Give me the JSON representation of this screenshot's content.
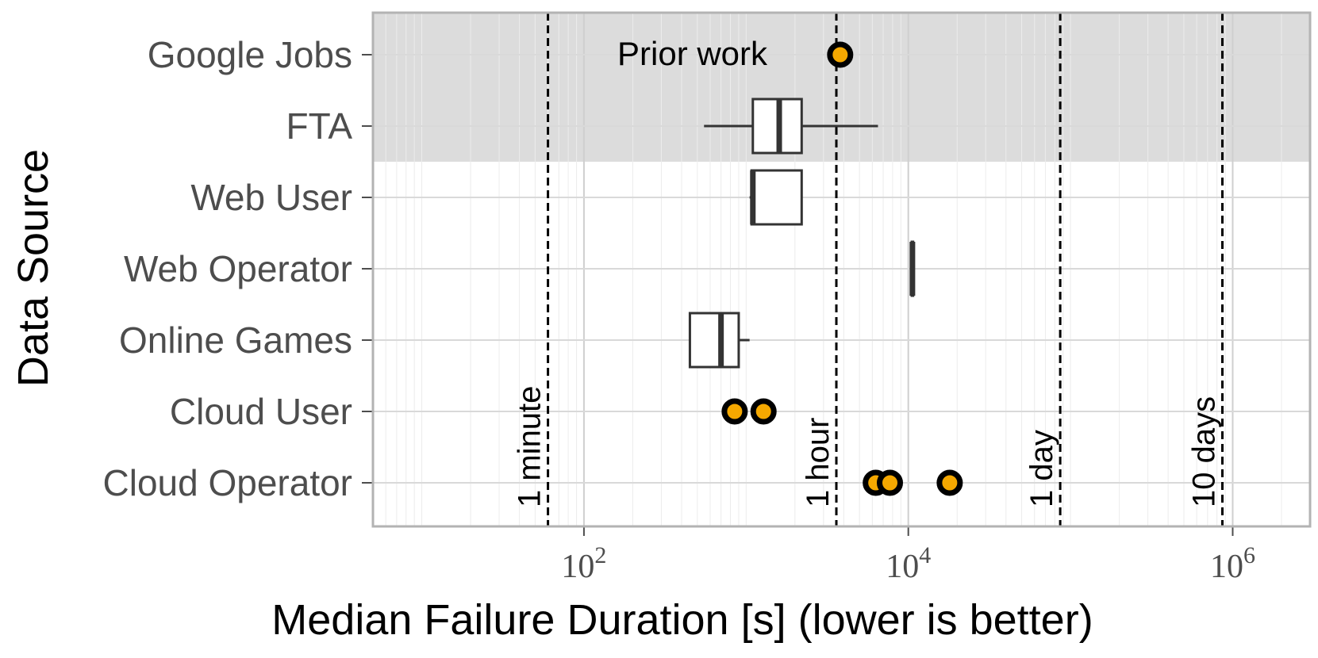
{
  "chart_data": {
    "type": "boxplot",
    "title": "",
    "xlabel": "Median Failure Duration [s] (lower is better)",
    "ylabel": "Data Source",
    "x_scale": "log",
    "xlim": [
      5,
      3000000
    ],
    "x_ticks": [
      {
        "value": 100,
        "base": "10",
        "exp": "2"
      },
      {
        "value": 10000,
        "base": "10",
        "exp": "4"
      },
      {
        "value": 1000000,
        "base": "10",
        "exp": "6"
      }
    ],
    "categories": [
      "Google Jobs",
      "FTA",
      "Web User",
      "Web Operator",
      "Online Games",
      "Cloud User",
      "Cloud Operator"
    ],
    "shaded_region": {
      "categories": [
        "Google Jobs",
        "FTA"
      ],
      "color": "#dcdcdc",
      "annotation": "Prior work"
    },
    "reference_lines": [
      {
        "value": 60,
        "label": "1 minute"
      },
      {
        "value": 3600,
        "label": "1 hour"
      },
      {
        "value": 86400,
        "label": "1 day"
      },
      {
        "value": 864000,
        "label": "10 days"
      }
    ],
    "boxes": [
      {
        "category": "FTA",
        "whisker_low": 550,
        "q1": 1100,
        "median": 1600,
        "q3": 2200,
        "whisker_high": 6500
      },
      {
        "category": "Web User",
        "whisker_low": 1050,
        "q1": 1080,
        "median": 1100,
        "q3": 2200,
        "whisker_high": 2200
      },
      {
        "category": "Web Operator",
        "whisker_low": 10500,
        "q1": 10500,
        "median": 10600,
        "q3": 10700,
        "whisker_high": 10700
      },
      {
        "category": "Online Games",
        "whisker_low": 450,
        "q1": 450,
        "median": 700,
        "q3": 900,
        "whisker_high": 1050
      }
    ],
    "points": [
      {
        "category": "Google Jobs",
        "value": 3800
      },
      {
        "category": "Cloud User",
        "value": 850
      },
      {
        "category": "Cloud User",
        "value": 1280
      },
      {
        "category": "Cloud Operator",
        "value": 6300
      },
      {
        "category": "Cloud Operator",
        "value": 7700
      },
      {
        "category": "Cloud Operator",
        "value": 18000
      }
    ],
    "grid": true,
    "colors": {
      "point_fill": "#f5a800",
      "point_stroke": "#000000",
      "box_stroke": "#333333",
      "grid": "#d9d9d9",
      "panel_border": "#b3b3b3",
      "ref_line": "#000000"
    }
  }
}
